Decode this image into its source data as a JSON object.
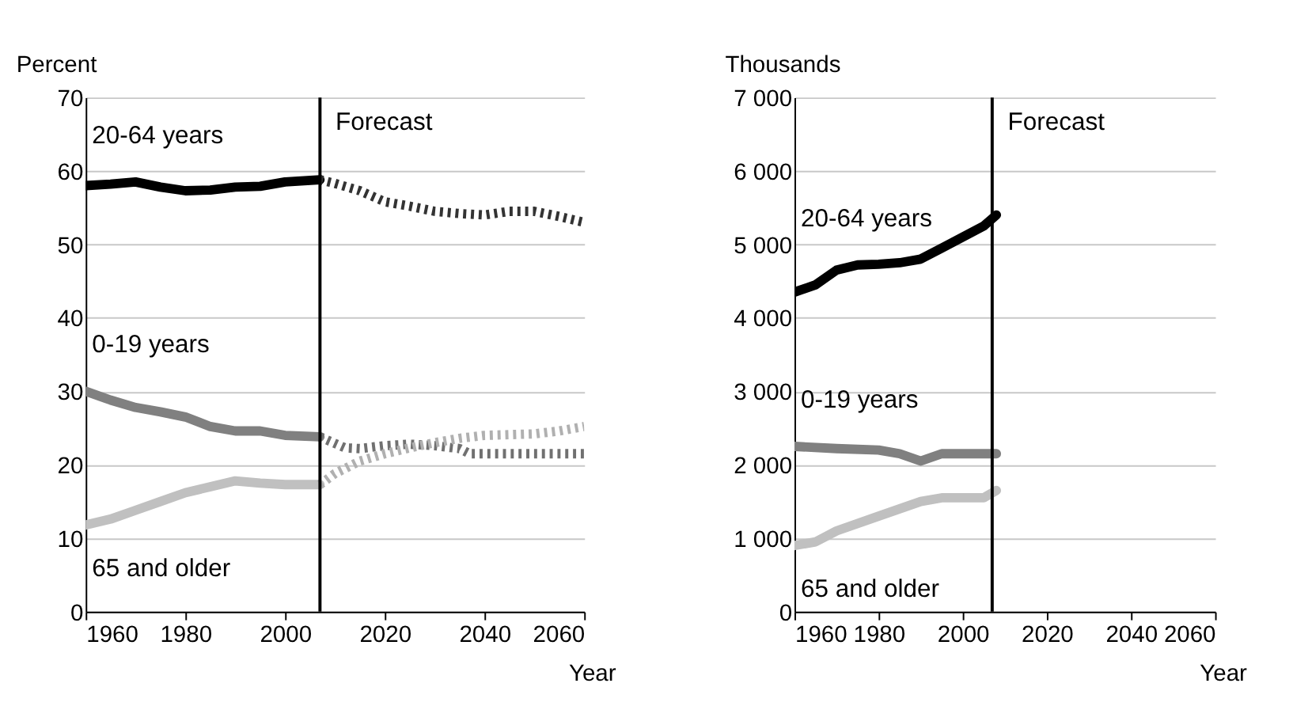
{
  "chart_data": [
    {
      "type": "line",
      "ylabel": "Percent",
      "xlabel": "Year",
      "xlim": [
        1960,
        2060
      ],
      "xticks": [
        1960,
        1980,
        2000,
        2020,
        2040,
        2060
      ],
      "ylim": [
        0,
        70
      ],
      "yticks": [
        0,
        10,
        20,
        30,
        40,
        50,
        60,
        70
      ],
      "grid": "y",
      "series": [
        {
          "name": "20-64 years",
          "color": "#000000",
          "line_style": "solid",
          "x": [
            1960,
            1965,
            1970,
            1975,
            1980,
            1985,
            1990,
            1995,
            2000,
            2007
          ],
          "values": [
            58,
            58.2,
            58.5,
            57.8,
            57.3,
            57.4,
            57.8,
            57.9,
            58.5,
            58.8
          ]
        },
        {
          "color": "#333333",
          "line_style": "dotted",
          "x": [
            2007,
            2010,
            2015,
            2020,
            2025,
            2030,
            2035,
            2040,
            2045,
            2050,
            2055,
            2060
          ],
          "values": [
            58.8,
            58.3,
            57.3,
            55.8,
            55.2,
            54.5,
            54.2,
            54,
            54.5,
            54.5,
            53.8,
            53
          ]
        },
        {
          "name": "0-19 years",
          "color": "#808080",
          "line_style": "solid",
          "x": [
            1960,
            1965,
            1970,
            1975,
            1980,
            1985,
            1990,
            1995,
            2000,
            2007
          ],
          "values": [
            30,
            28.8,
            27.8,
            27.2,
            26.5,
            25.2,
            24.6,
            24.6,
            24,
            23.8
          ]
        },
        {
          "color": "#707070",
          "line_style": "dotted",
          "x": [
            2007,
            2012,
            2015,
            2020,
            2025,
            2030,
            2035,
            2037,
            2045,
            2060
          ],
          "values": [
            23.8,
            22.3,
            22.2,
            22.6,
            22.8,
            22.6,
            22.2,
            21.5,
            21.5,
            21.5
          ]
        },
        {
          "name": "65 and older",
          "color": "#c0c0c0",
          "line_style": "solid",
          "x": [
            1960,
            1965,
            1970,
            1975,
            1980,
            1985,
            1990,
            1995,
            2000,
            2007
          ],
          "values": [
            11.8,
            12.6,
            13.8,
            15,
            16.2,
            17,
            17.8,
            17.5,
            17.3,
            17.3
          ]
        },
        {
          "color": "#b0b0b0",
          "line_style": "dotted",
          "x": [
            2007,
            2010,
            2015,
            2020,
            2025,
            2030,
            2035,
            2040,
            2050,
            2055,
            2060
          ],
          "values": [
            17.3,
            18.8,
            20.5,
            21.5,
            22.3,
            23,
            23.6,
            24,
            24.2,
            24.6,
            25.2
          ]
        }
      ],
      "ref_lines": [
        {
          "axis": "x",
          "value": 2007,
          "label": "Forecast",
          "color": "#000000"
        }
      ]
    },
    {
      "type": "line",
      "ylabel": "Thousands",
      "xlabel": "Year",
      "xlim": [
        1960,
        2060
      ],
      "xticks": [
        1960,
        1980,
        2000,
        2020,
        2040,
        2060
      ],
      "ylim": [
        0,
        7000
      ],
      "yticks": [
        0,
        {
          "value": 1000,
          "label": "1 000"
        },
        {
          "value": 2000,
          "label": "2 000"
        },
        {
          "value": 3000,
          "label": "3 000"
        },
        {
          "value": 4000,
          "label": "4 000"
        },
        {
          "value": 5000,
          "label": "5 000"
        },
        {
          "value": 6000,
          "label": "6 000"
        },
        {
          "value": 7000,
          "label": "7 000"
        }
      ],
      "grid": "y",
      "series": [
        {
          "name": "20-64 years",
          "color": "#000000",
          "line_style": "solid",
          "x": [
            1960,
            1965,
            1970,
            1975,
            1980,
            1985,
            1990,
            1995,
            2000,
            2005,
            2008
          ],
          "values": [
            4350,
            4450,
            4650,
            4720,
            4730,
            4750,
            4800,
            4950,
            5100,
            5250,
            5400
          ]
        },
        {
          "name": "0-19 years",
          "color": "#808080",
          "line_style": "solid",
          "x": [
            1960,
            1970,
            1980,
            1985,
            1990,
            1995,
            2000,
            2008
          ],
          "values": [
            2250,
            2220,
            2200,
            2150,
            2050,
            2150,
            2150,
            2150
          ]
        },
        {
          "name": "65 and older",
          "color": "#c0c0c0",
          "line_style": "solid",
          "x": [
            1960,
            1965,
            1970,
            1980,
            1985,
            1990,
            1995,
            2000,
            2005,
            2008
          ],
          "values": [
            900,
            950,
            1100,
            1300,
            1400,
            1500,
            1550,
            1550,
            1550,
            1650
          ]
        }
      ],
      "ref_lines": [
        {
          "axis": "x",
          "value": 2007,
          "label": "Forecast",
          "color": "#000000"
        }
      ]
    }
  ]
}
